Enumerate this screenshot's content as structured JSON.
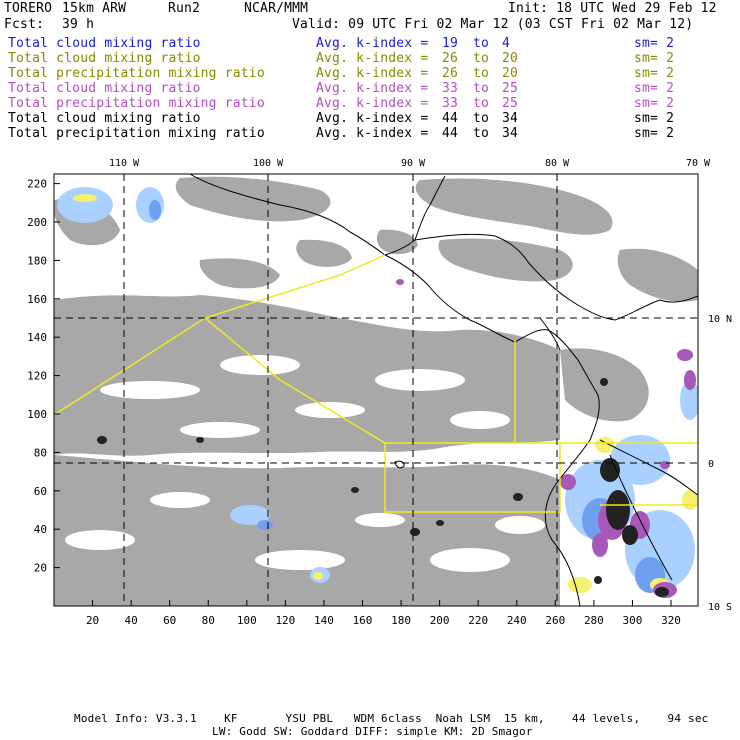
{
  "header": {
    "model": "TORERO",
    "resolution": "15km ARW",
    "run": "Run2",
    "center": "NCAR/MMM",
    "init": "Init: 18 UTC Wed 29 Feb 12",
    "fcst_label": "Fcst:",
    "fcst_value": "39 h",
    "valid": "Valid: 09 UTC Fri 02 Mar 12 (03 CST Fri 02 Mar 12)"
  },
  "fields": [
    {
      "name": "Total cloud mixing ratio",
      "k_label": "Avg. k-index =",
      "k_from": "19",
      "to": "to",
      "k_to": "4",
      "sm": "sm= 2",
      "color": "#1a1adc"
    },
    {
      "name": "Total cloud mixing ratio",
      "k_label": "Avg. k-index =",
      "k_from": "26",
      "to": "to",
      "k_to": "20",
      "sm": "sm= 2",
      "color": "#8a8a00"
    },
    {
      "name": "Total precipitation mixing ratio",
      "k_label": "Avg. k-index =",
      "k_from": "26",
      "to": "to",
      "k_to": "20",
      "sm": "sm= 2",
      "color": "#8a8a00"
    },
    {
      "name": "Total cloud mixing ratio",
      "k_label": "Avg. k-index =",
      "k_from": "33",
      "to": "to",
      "k_to": "25",
      "sm": "sm= 2",
      "color": "#b050c0"
    },
    {
      "name": "Total precipitation mixing ratio",
      "k_label": "Avg. k-index =",
      "k_from": "33",
      "to": "to",
      "k_to": "25",
      "sm": "sm= 2",
      "color": "#b050c0"
    },
    {
      "name": "Total cloud mixing ratio",
      "k_label": "Avg. k-index =",
      "k_from": "44",
      "to": "to",
      "k_to": "34",
      "sm": "sm= 2",
      "color": "#000000"
    },
    {
      "name": "Total precipitation mixing ratio",
      "k_label": "Avg. k-index =",
      "k_from": "44",
      "to": "to",
      "k_to": "34",
      "sm": "sm= 2",
      "color": "#000000"
    }
  ],
  "axes": {
    "lon_labels": [
      "110 W",
      "100 W",
      "90 W",
      "80 W",
      "70 W"
    ],
    "lat_labels": [
      "10 N",
      "0",
      "10 S"
    ],
    "x_ticks": [
      "20",
      "40",
      "60",
      "80",
      "100",
      "120",
      "140",
      "160",
      "180",
      "200",
      "220",
      "240",
      "260",
      "280",
      "300",
      "320"
    ],
    "y_ticks": [
      "220",
      "200",
      "180",
      "160",
      "140",
      "120",
      "100",
      "80",
      "60",
      "40",
      "20"
    ]
  },
  "footer": {
    "line1": "Model Info: V3.3.1    KF       YSU PBL   WDM 6class  Noah LSM  15 km,    44 levels,    94 sec",
    "line2": "LW: Godd SW: Goddard DIFF: simple KM: 2D Smagor"
  },
  "colors": {
    "cloud_gray": "#a8a8a8",
    "heavy_black": "#222222",
    "light_blue": "#aad0ff",
    "mid_blue": "#6fa0f0",
    "yellow": "#f5f070",
    "purple": "#a858b8",
    "domain_yellow": "#f0e820"
  }
}
